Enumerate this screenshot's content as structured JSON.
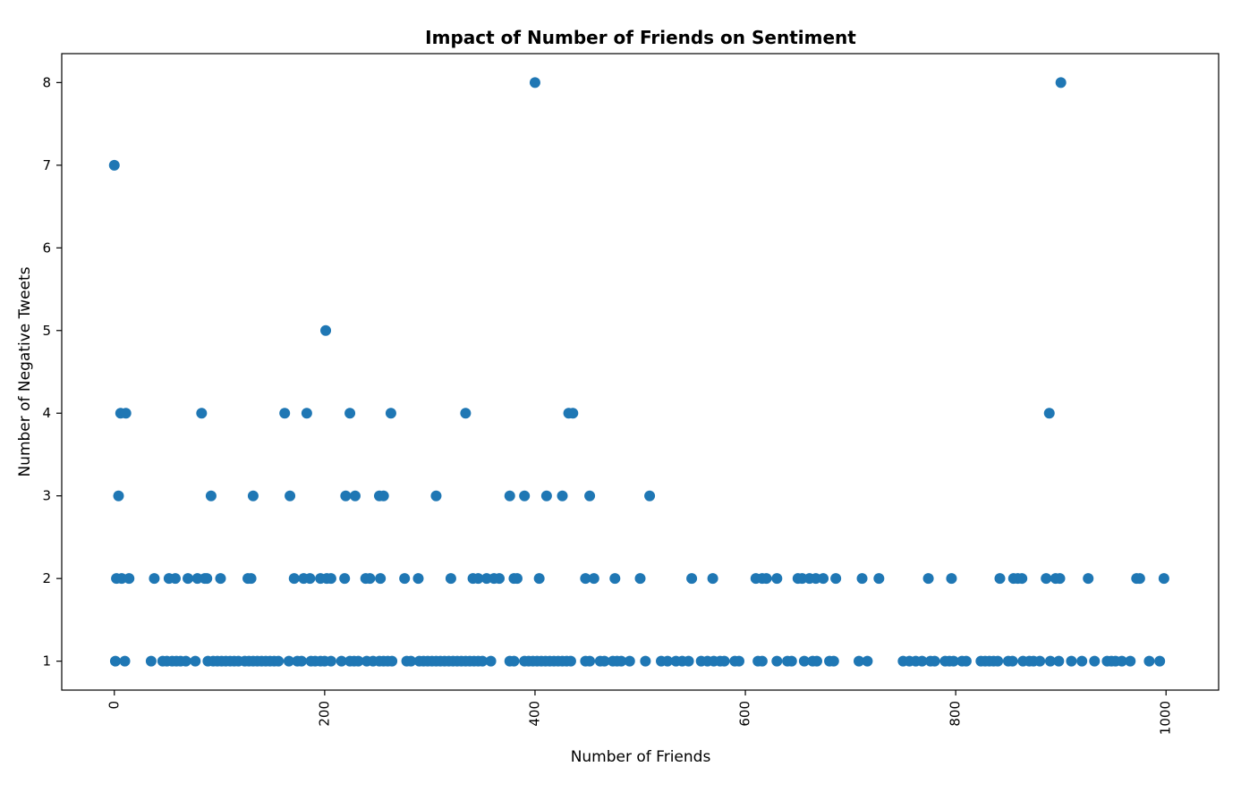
{
  "chart_data": {
    "type": "scatter",
    "title": "Impact of Number of Friends on Sentiment",
    "xlabel": "Number of Friends",
    "ylabel": "Number of Negative Tweets",
    "xlim": [
      -50,
      1050
    ],
    "ylim": [
      0.65,
      8.35
    ],
    "xticks": [
      0,
      200,
      400,
      600,
      800,
      1000
    ],
    "yticks": [
      1,
      2,
      3,
      4,
      5,
      6,
      7,
      8
    ],
    "grid": false,
    "marker_color": "#1f77b4",
    "series": [
      {
        "points": [
          [
            0,
            7
          ],
          [
            400,
            8
          ],
          [
            900,
            8
          ],
          [
            201,
            5
          ],
          [
            6,
            4
          ],
          [
            11,
            4
          ],
          [
            83,
            4
          ],
          [
            162,
            4
          ],
          [
            183,
            4
          ],
          [
            224,
            4
          ],
          [
            263,
            4
          ],
          [
            334,
            4
          ],
          [
            432,
            4
          ],
          [
            436,
            4
          ],
          [
            889,
            4
          ],
          [
            4,
            3
          ],
          [
            92,
            3
          ],
          [
            132,
            3
          ],
          [
            167,
            3
          ],
          [
            220,
            3
          ],
          [
            229,
            3
          ],
          [
            252,
            3
          ],
          [
            256,
            3
          ],
          [
            306,
            3
          ],
          [
            376,
            3
          ],
          [
            390,
            3
          ],
          [
            411,
            3
          ],
          [
            426,
            3
          ],
          [
            452,
            3
          ],
          [
            509,
            3
          ],
          [
            2,
            2
          ],
          [
            7,
            2
          ],
          [
            14,
            2
          ],
          [
            38,
            2
          ],
          [
            52,
            2
          ],
          [
            58,
            2
          ],
          [
            70,
            2
          ],
          [
            79,
            2
          ],
          [
            86,
            2
          ],
          [
            88,
            2
          ],
          [
            101,
            2
          ],
          [
            127,
            2
          ],
          [
            130,
            2
          ],
          [
            171,
            2
          ],
          [
            180,
            2
          ],
          [
            186,
            2
          ],
          [
            196,
            2
          ],
          [
            202,
            2
          ],
          [
            206,
            2
          ],
          [
            219,
            2
          ],
          [
            239,
            2
          ],
          [
            243,
            2
          ],
          [
            253,
            2
          ],
          [
            276,
            2
          ],
          [
            289,
            2
          ],
          [
            320,
            2
          ],
          [
            341,
            2
          ],
          [
            346,
            2
          ],
          [
            354,
            2
          ],
          [
            361,
            2
          ],
          [
            366,
            2
          ],
          [
            380,
            2
          ],
          [
            383,
            2
          ],
          [
            404,
            2
          ],
          [
            448,
            2
          ],
          [
            456,
            2
          ],
          [
            476,
            2
          ],
          [
            500,
            2
          ],
          [
            549,
            2
          ],
          [
            569,
            2
          ],
          [
            610,
            2
          ],
          [
            616,
            2
          ],
          [
            620,
            2
          ],
          [
            630,
            2
          ],
          [
            650,
            2
          ],
          [
            654,
            2
          ],
          [
            661,
            2
          ],
          [
            667,
            2
          ],
          [
            674,
            2
          ],
          [
            686,
            2
          ],
          [
            711,
            2
          ],
          [
            727,
            2
          ],
          [
            774,
            2
          ],
          [
            796,
            2
          ],
          [
            842,
            2
          ],
          [
            855,
            2
          ],
          [
            859,
            2
          ],
          [
            863,
            2
          ],
          [
            886,
            2
          ],
          [
            895,
            2
          ],
          [
            899,
            2
          ],
          [
            926,
            2
          ],
          [
            972,
            2
          ],
          [
            975,
            2
          ],
          [
            998,
            2
          ],
          [
            1,
            1
          ],
          [
            10,
            1
          ],
          [
            35,
            1
          ],
          [
            46,
            1
          ],
          [
            50,
            1
          ],
          [
            55,
            1
          ],
          [
            59,
            1
          ],
          [
            63,
            1
          ],
          [
            68,
            1
          ],
          [
            77,
            1
          ],
          [
            89,
            1
          ],
          [
            94,
            1
          ],
          [
            98,
            1
          ],
          [
            102,
            1
          ],
          [
            106,
            1
          ],
          [
            110,
            1
          ],
          [
            114,
            1
          ],
          [
            118,
            1
          ],
          [
            124,
            1
          ],
          [
            128,
            1
          ],
          [
            132,
            1
          ],
          [
            136,
            1
          ],
          [
            140,
            1
          ],
          [
            144,
            1
          ],
          [
            148,
            1
          ],
          [
            152,
            1
          ],
          [
            156,
            1
          ],
          [
            166,
            1
          ],
          [
            174,
            1
          ],
          [
            178,
            1
          ],
          [
            187,
            1
          ],
          [
            191,
            1
          ],
          [
            196,
            1
          ],
          [
            200,
            1
          ],
          [
            206,
            1
          ],
          [
            216,
            1
          ],
          [
            224,
            1
          ],
          [
            228,
            1
          ],
          [
            232,
            1
          ],
          [
            240,
            1
          ],
          [
            246,
            1
          ],
          [
            252,
            1
          ],
          [
            256,
            1
          ],
          [
            260,
            1
          ],
          [
            264,
            1
          ],
          [
            278,
            1
          ],
          [
            282,
            1
          ],
          [
            290,
            1
          ],
          [
            294,
            1
          ],
          [
            298,
            1
          ],
          [
            302,
            1
          ],
          [
            306,
            1
          ],
          [
            310,
            1
          ],
          [
            314,
            1
          ],
          [
            318,
            1
          ],
          [
            322,
            1
          ],
          [
            326,
            1
          ],
          [
            330,
            1
          ],
          [
            334,
            1
          ],
          [
            338,
            1
          ],
          [
            342,
            1
          ],
          [
            346,
            1
          ],
          [
            350,
            1
          ],
          [
            358,
            1
          ],
          [
            376,
            1
          ],
          [
            380,
            1
          ],
          [
            390,
            1
          ],
          [
            394,
            1
          ],
          [
            398,
            1
          ],
          [
            402,
            1
          ],
          [
            406,
            1
          ],
          [
            410,
            1
          ],
          [
            414,
            1
          ],
          [
            418,
            1
          ],
          [
            422,
            1
          ],
          [
            426,
            1
          ],
          [
            430,
            1
          ],
          [
            434,
            1
          ],
          [
            448,
            1
          ],
          [
            452,
            1
          ],
          [
            462,
            1
          ],
          [
            466,
            1
          ],
          [
            474,
            1
          ],
          [
            478,
            1
          ],
          [
            482,
            1
          ],
          [
            490,
            1
          ],
          [
            505,
            1
          ],
          [
            520,
            1
          ],
          [
            526,
            1
          ],
          [
            534,
            1
          ],
          [
            540,
            1
          ],
          [
            546,
            1
          ],
          [
            558,
            1
          ],
          [
            564,
            1
          ],
          [
            570,
            1
          ],
          [
            576,
            1
          ],
          [
            580,
            1
          ],
          [
            590,
            1
          ],
          [
            594,
            1
          ],
          [
            612,
            1
          ],
          [
            616,
            1
          ],
          [
            630,
            1
          ],
          [
            640,
            1
          ],
          [
            644,
            1
          ],
          [
            656,
            1
          ],
          [
            664,
            1
          ],
          [
            668,
            1
          ],
          [
            680,
            1
          ],
          [
            684,
            1
          ],
          [
            708,
            1
          ],
          [
            716,
            1
          ],
          [
            750,
            1
          ],
          [
            756,
            1
          ],
          [
            762,
            1
          ],
          [
            768,
            1
          ],
          [
            776,
            1
          ],
          [
            780,
            1
          ],
          [
            790,
            1
          ],
          [
            794,
            1
          ],
          [
            798,
            1
          ],
          [
            806,
            1
          ],
          [
            810,
            1
          ],
          [
            824,
            1
          ],
          [
            828,
            1
          ],
          [
            832,
            1
          ],
          [
            836,
            1
          ],
          [
            840,
            1
          ],
          [
            850,
            1
          ],
          [
            854,
            1
          ],
          [
            864,
            1
          ],
          [
            870,
            1
          ],
          [
            874,
            1
          ],
          [
            880,
            1
          ],
          [
            890,
            1
          ],
          [
            898,
            1
          ],
          [
            910,
            1
          ],
          [
            920,
            1
          ],
          [
            932,
            1
          ],
          [
            944,
            1
          ],
          [
            948,
            1
          ],
          [
            952,
            1
          ],
          [
            958,
            1
          ],
          [
            966,
            1
          ],
          [
            984,
            1
          ],
          [
            994,
            1
          ]
        ]
      }
    ]
  }
}
